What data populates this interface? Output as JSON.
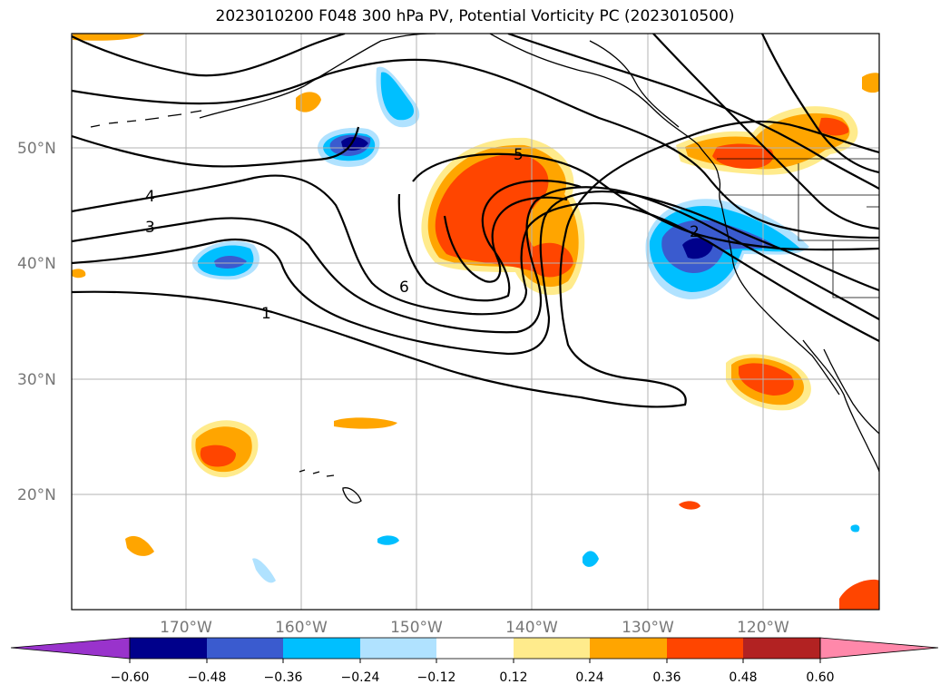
{
  "title": "2023010200 F048 300 hPa PV, Potential Vorticity PC (2023010500)",
  "axes": {
    "lat_labels": [
      "50°N",
      "40°N",
      "30°N",
      "20°N"
    ],
    "lon_labels": [
      "170°W",
      "160°W",
      "150°W",
      "140°W",
      "130°W",
      "120°W"
    ]
  },
  "colorbar": {
    "tick_labels": [
      "−0.60",
      "−0.48",
      "−0.36",
      "−0.24",
      "−0.12",
      "0.12",
      "0.24",
      "0.36",
      "0.48",
      "0.60"
    ],
    "colors": [
      "#9933cc",
      "#00008b",
      "#3a5bcf",
      "#00bfff",
      "#b0e2ff",
      "#ffffff",
      "#ffeb8c",
      "#ffa500",
      "#ff4500",
      "#b22222",
      "#ff88aa"
    ]
  },
  "contour_labels": [
    "1",
    "2",
    "3",
    "4",
    "5",
    "6"
  ],
  "chart_data": {
    "type": "heatmap",
    "title": "2023010200 F048 300 hPa PV, Potential Vorticity PC (2023010500)",
    "lat_ticks": [
      50,
      40,
      30,
      20
    ],
    "lon_ticks": [
      -170,
      -160,
      -150,
      -140,
      -130,
      -120
    ],
    "colorbar_levels": [
      -0.6,
      -0.48,
      -0.36,
      -0.24,
      -0.12,
      0.12,
      0.24,
      0.36,
      0.48,
      0.6
    ],
    "pv_contour_levels": [
      1,
      2,
      3,
      4,
      5,
      6
    ]
  }
}
